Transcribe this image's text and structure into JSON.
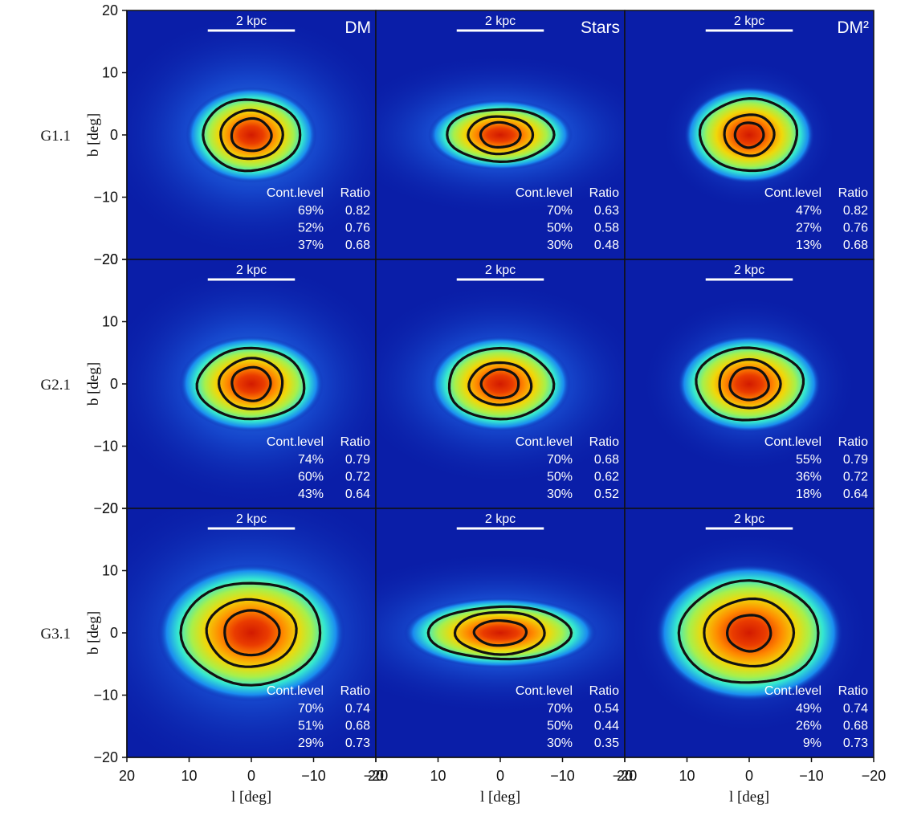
{
  "chart_data": {
    "type": "heatmap",
    "description_labels": {
      "xlabel": "l [deg]",
      "ylabel": "b [deg]",
      "table_header_level": "Cont.level",
      "table_header_ratio": "Ratio",
      "scale_bar_label": "2 kpc"
    },
    "xlim": [
      20,
      -20
    ],
    "ylim": [
      -20,
      20
    ],
    "xticks": [
      20,
      10,
      0,
      -10,
      -20
    ],
    "yticks": [
      20,
      10,
      0,
      -10,
      -20
    ],
    "columns": [
      "DM",
      "Stars",
      "DM²"
    ],
    "rows": [
      "G1.1",
      "G2.1",
      "G3.1"
    ],
    "colormap": "jet",
    "colors": {
      "background": "#0a1ea8",
      "contour": "#111111",
      "text_on_map": "#ffffff"
    },
    "panels": [
      {
        "row": 0,
        "col": 0,
        "contours": [
          {
            "a": 3.2,
            "b": 2.6
          },
          {
            "a": 5.0,
            "b": 3.9
          },
          {
            "a": 7.8,
            "b": 5.7
          }
        ],
        "core": {
          "a": 4.2,
          "b": 3.6
        },
        "glow": {
          "a": 11,
          "b": 9
        },
        "table": [
          [
            "69%",
            "0.82"
          ],
          [
            "52%",
            "0.76"
          ],
          [
            "37%",
            "0.68"
          ]
        ]
      },
      {
        "row": 0,
        "col": 1,
        "contours": [
          {
            "a": 3.2,
            "b": 2.0
          },
          {
            "a": 5.2,
            "b": 3.0
          },
          {
            "a": 8.6,
            "b": 4.2
          }
        ],
        "core": {
          "a": 4.0,
          "b": 2.6
        },
        "glow": {
          "a": 12,
          "b": 6
        },
        "table": [
          [
            "70%",
            "0.63"
          ],
          [
            "50%",
            "0.58"
          ],
          [
            "30%",
            "0.48"
          ]
        ]
      },
      {
        "row": 0,
        "col": 2,
        "contours": [
          {
            "a": 2.3,
            "b": 2.0
          },
          {
            "a": 4.0,
            "b": 3.3
          },
          {
            "a": 7.8,
            "b": 5.8
          }
        ],
        "core": {
          "a": 2.8,
          "b": 2.4
        },
        "glow": {
          "a": 6.5,
          "b": 5.5
        },
        "table": [
          [
            "47%",
            "0.82"
          ],
          [
            "27%",
            "0.76"
          ],
          [
            "13%",
            "0.68"
          ]
        ]
      },
      {
        "row": 1,
        "col": 0,
        "contours": [
          {
            "a": 3.1,
            "b": 2.7
          },
          {
            "a": 5.1,
            "b": 4.1
          },
          {
            "a": 8.6,
            "b": 5.7
          }
        ],
        "core": {
          "a": 4.2,
          "b": 3.6
        },
        "glow": {
          "a": 11,
          "b": 9
        },
        "table": [
          [
            "74%",
            "0.79"
          ],
          [
            "60%",
            "0.72"
          ],
          [
            "43%",
            "0.64"
          ]
        ]
      },
      {
        "row": 1,
        "col": 1,
        "contours": [
          {
            "a": 3.0,
            "b": 2.3
          },
          {
            "a": 5.0,
            "b": 3.4
          },
          {
            "a": 8.4,
            "b": 5.7
          }
        ],
        "core": {
          "a": 3.8,
          "b": 3.0
        },
        "glow": {
          "a": 11,
          "b": 7.5
        },
        "table": [
          [
            "70%",
            "0.68"
          ],
          [
            "50%",
            "0.62"
          ],
          [
            "30%",
            "0.52"
          ]
        ]
      },
      {
        "row": 1,
        "col": 2,
        "contours": [
          {
            "a": 3.1,
            "b": 2.6
          },
          {
            "a": 4.9,
            "b": 3.9
          },
          {
            "a": 8.6,
            "b": 5.8
          }
        ],
        "core": {
          "a": 3.4,
          "b": 3.0
        },
        "glow": {
          "a": 8,
          "b": 6.5
        },
        "table": [
          [
            "55%",
            "0.79"
          ],
          [
            "36%",
            "0.72"
          ],
          [
            "18%",
            "0.64"
          ]
        ]
      },
      {
        "row": 2,
        "col": 0,
        "contours": [
          {
            "a": 4.4,
            "b": 3.6
          },
          {
            "a": 7.2,
            "b": 5.4
          },
          {
            "a": 11.2,
            "b": 8.2
          }
        ],
        "core": {
          "a": 5.0,
          "b": 4.3
        },
        "glow": {
          "a": 13,
          "b": 11
        },
        "table": [
          [
            "70%",
            "0.74"
          ],
          [
            "51%",
            "0.68"
          ],
          [
            "29%",
            "0.73"
          ]
        ]
      },
      {
        "row": 2,
        "col": 1,
        "contours": [
          {
            "a": 4.2,
            "b": 2.0
          },
          {
            "a": 7.2,
            "b": 3.4
          },
          {
            "a": 11.5,
            "b": 4.2
          }
        ],
        "core": {
          "a": 4.8,
          "b": 2.6
        },
        "glow": {
          "a": 14,
          "b": 6
        },
        "table": [
          [
            "70%",
            "0.54"
          ],
          [
            "50%",
            "0.44"
          ],
          [
            "30%",
            "0.35"
          ]
        ]
      },
      {
        "row": 2,
        "col": 2,
        "contours": [
          {
            "a": 3.5,
            "b": 2.9
          },
          {
            "a": 7.2,
            "b": 5.4
          },
          {
            "a": 11.2,
            "b": 8.2
          }
        ],
        "core": {
          "a": 3.6,
          "b": 3.0
        },
        "glow": {
          "a": 9,
          "b": 7.5
        },
        "table": [
          [
            "49%",
            "0.74"
          ],
          [
            "26%",
            "0.68"
          ],
          [
            "9%",
            "0.73"
          ]
        ]
      }
    ]
  }
}
